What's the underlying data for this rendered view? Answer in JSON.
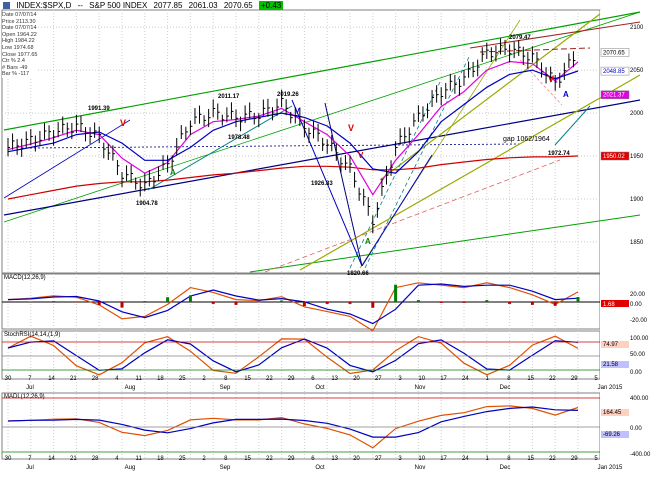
{
  "header": {
    "icon": "chart-icon",
    "symbol": "INDEX:$SPX,D",
    "name": "S&P 500 INDEX",
    "ohlc": [
      "2077.85",
      "2061.03",
      "2070.65"
    ],
    "change": "+0.43",
    "change_color": "#00c000"
  },
  "info_box": [
    "Date  07/07/14",
    "Price  2113.30",
    "Date  07/07/14",
    "Open  1964.22",
    "High  1984.22",
    "Low  1974.68",
    "Close  1977.65",
    "Ctr % 2.4",
    "# Bars -49",
    "Bar % -117"
  ],
  "colors": {
    "price_bar": "#000000",
    "ma_short": "#0000c0",
    "ma_mid": "#e000e0",
    "ma_long": "#d00000",
    "channel_green": "#00a000",
    "channel_olive": "#9aaa00",
    "trend_navy": "#000080",
    "macd_hist_pos": "#008000",
    "macd_hist_neg": "#c00000",
    "osc_red": "#e05000",
    "osc_blue": "#0000c0"
  },
  "annotations": {
    "prices": [
      "1991.39",
      "2011.17",
      "2019.26",
      "1904.78",
      "1978.48",
      "1926.83",
      "1820.66",
      "2079.47",
      "1972.74"
    ],
    "gap_label": "gap  1062/1964",
    "signal_mark": "V",
    "confirm_mark": "A",
    "div_label": "div"
  },
  "right_axis": {
    "labels": [
      "2100",
      "2050",
      "2000",
      "1950",
      "1900",
      "1850"
    ],
    "price_tags": [
      {
        "text": "2070.65",
        "bg": "#ffffff",
        "fg": "#000000",
        "value": 2070.65
      },
      {
        "text": "2048.85",
        "bg": "#ffffff",
        "fg": "#0000c0",
        "value": 2048.85
      },
      {
        "text": "2021.37",
        "bg": "#e000e0",
        "fg": "#ffffff",
        "value": 2021.37
      },
      {
        "text": "1950.02",
        "bg": "#e00000",
        "fg": "#ffffff",
        "value": 1950.02
      }
    ]
  },
  "panels": {
    "macd": {
      "title": "MACD(12,26,9)",
      "axis": [
        "20.00",
        "0.00",
        "-20.00"
      ],
      "tag": "1.68"
    },
    "stochrsi": {
      "title": "StochRSI(14,14,(1,9)",
      "axis": [
        "100.00",
        "50.00",
        "0.00"
      ],
      "tags": [
        "74.97",
        "21.58"
      ]
    },
    "madist": {
      "title": "MADL(12,26,9)",
      "axis": [
        "400.00",
        "0.00",
        "-400.00"
      ],
      "tags": [
        "164.45",
        "-69.26"
      ]
    }
  },
  "x_axis": {
    "days": [
      "30",
      "7",
      "14",
      "21",
      "28",
      "4",
      "11",
      "18",
      "25",
      "2",
      "8",
      "15",
      "22",
      "29",
      "6",
      "13",
      "20",
      "27",
      "3",
      "10",
      "17",
      "24",
      "1",
      "8",
      "15",
      "22",
      "29",
      "5"
    ],
    "months": [
      "Jul",
      "Aug",
      "Sep",
      "Oct",
      "Nov",
      "Dec",
      "Jan 2015"
    ]
  },
  "chart_data": {
    "type": "line",
    "title": "INDEX:$SPX,D -- S&P 500 INDEX",
    "ylim": [
      1815,
      2120
    ],
    "x": [
      "Jun 30",
      "Jul 7",
      "Jul 14",
      "Jul 21",
      "Jul 28",
      "Aug 4",
      "Aug 11",
      "Aug 18",
      "Aug 25",
      "Sep 2",
      "Sep 8",
      "Sep 15",
      "Sep 22",
      "Sep 29",
      "Oct 6",
      "Oct 13",
      "Oct 20",
      "Oct 27",
      "Nov 3",
      "Nov 10",
      "Nov 17",
      "Nov 24",
      "Dec 1",
      "Dec 8",
      "Dec 15",
      "Dec 22"
    ],
    "series": [
      {
        "name": "Close",
        "values": [
          1960,
          1968,
          1978,
          1985,
          1972,
          1930,
          1915,
          1940,
          1990,
          2000,
          1995,
          1998,
          2011,
          1985,
          1965,
          1935,
          1875,
          1960,
          1995,
          2025,
          2040,
          2070,
          2075,
          2065,
          2035,
          2070
        ]
      },
      {
        "name": "MA short",
        "values": [
          1955,
          1960,
          1965,
          1975,
          1978,
          1965,
          1945,
          1945,
          1960,
          1980,
          1990,
          1995,
          2000,
          1995,
          1985,
          1965,
          1935,
          1930,
          1955,
          1990,
          2010,
          2030,
          2045,
          2050,
          2040,
          2049
        ]
      },
      {
        "name": "MA long",
        "values": [
          1900,
          1905,
          1910,
          1915,
          1918,
          1920,
          1920,
          1922,
          1925,
          1928,
          1930,
          1933,
          1936,
          1938,
          1938,
          1937,
          1934,
          1934,
          1936,
          1940,
          1943,
          1946,
          1948,
          1949,
          1949,
          1950
        ]
      }
    ]
  }
}
